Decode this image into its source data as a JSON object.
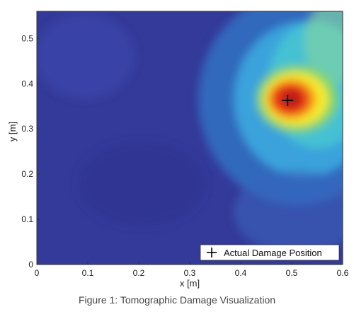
{
  "caption": "Figure 1: Tomographic Damage Visualization",
  "chart_data": {
    "type": "heatmap",
    "title": "",
    "xlabel": "x [m]",
    "ylabel": "y [m]",
    "xlim": [
      0,
      0.6
    ],
    "ylim": [
      0,
      0.56
    ],
    "x_ticks": [
      0,
      0.1,
      0.2,
      0.3,
      0.4,
      0.5,
      0.6
    ],
    "y_ticks": [
      0,
      0.1,
      0.2,
      0.3,
      0.4,
      0.5
    ],
    "x_tick_labels": [
      "0",
      "0.1",
      "0.2",
      "0.3",
      "0.4",
      "0.5",
      "0.6"
    ],
    "y_tick_labels": [
      "0",
      "0.1",
      "0.2",
      "0.3",
      "0.4",
      "0.5"
    ],
    "colormap": "jet",
    "grid": false,
    "legend_position": "bottom-right",
    "hotspot": {
      "x": 0.5,
      "y": 0.36,
      "intensity": 1.0
    },
    "damage_marker": {
      "label": "Actual Damage Position",
      "x": 0.492,
      "y": 0.363,
      "color": "#000000"
    }
  }
}
